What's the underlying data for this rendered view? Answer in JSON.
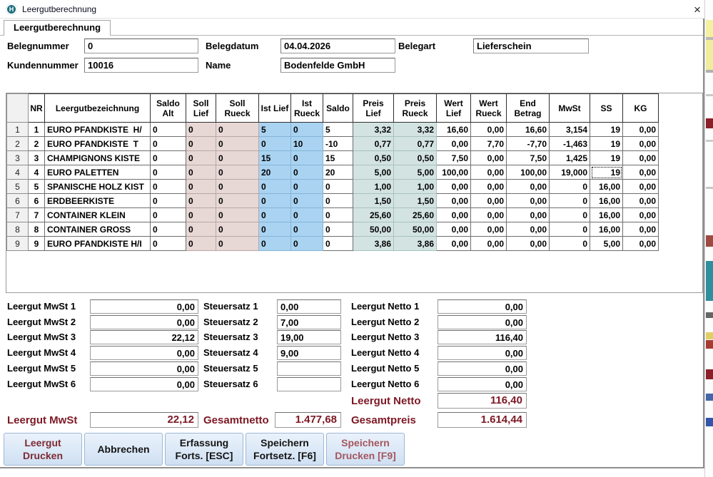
{
  "colors": {
    "icon_teal": "#1f6e7c",
    "column_soll_bg": "#e7d8d6",
    "column_ist_bg": "#a9d3f1",
    "column_preis_bg": "#d3e3e1",
    "totals_dark_red": "#7d1824",
    "button_bg": "#d8e6f6",
    "button_text_dark_red": "#7d2a33",
    "button_text_rose": "#a4565e"
  },
  "window": {
    "title": "Leergutberechnung",
    "icon_letter": "H",
    "close_glyph": "×"
  },
  "tab": {
    "label": "Leergutberechnung"
  },
  "form": {
    "belegnummer": {
      "label": "Belegnummer",
      "value": "0"
    },
    "belegdatum": {
      "label": "Belegdatum",
      "value": "04.04.2026"
    },
    "belegart": {
      "label": "Belegart",
      "value": "Lieferschein"
    },
    "kundennummer": {
      "label": "Kundennummer",
      "value": "10016"
    },
    "name": {
      "label": "Name",
      "value": "Bodenfelde GmbH"
    }
  },
  "table": {
    "header": {
      "nr": "NR",
      "name": "Leergutbezeichnung",
      "saldo_alt": "Saldo\nAlt",
      "soll_lief": "Soll\nLief",
      "soll_rueck": "Soll\nRueck",
      "ist_lief": "Ist Lief",
      "ist_rueck": "Ist\nRueck",
      "saldo": "Saldo",
      "preis_lief": "Preis\nLief",
      "preis_rueck": "Preis\nRueck",
      "wert_lief": "Wert\nLief",
      "wert_rueck": "Wert\nRueck",
      "end_betrag": "End\nBetrag",
      "mwst": "MwSt",
      "ss": "SS",
      "kg": "KG"
    },
    "rows": [
      {
        "idx": "1",
        "nr": "1",
        "name": "EURO PFANDKISTE  H/",
        "saldo_alt": "0",
        "soll_lief": "0",
        "soll_rueck": "0",
        "ist_lief": "5",
        "ist_rueck": "0",
        "saldo": "5",
        "preis_lief": "3,32",
        "preis_rueck": "3,32",
        "wert_lief": "16,60",
        "wert_rueck": "0,00",
        "end_betrag": "16,60",
        "mwst": "3,154",
        "ss": "19",
        "kg": "0,00"
      },
      {
        "idx": "2",
        "nr": "2",
        "name": "EURO PFANDKISTE  T",
        "saldo_alt": "0",
        "soll_lief": "0",
        "soll_rueck": "0",
        "ist_lief": "0",
        "ist_rueck": "10",
        "saldo": "-10",
        "preis_lief": "0,77",
        "preis_rueck": "0,77",
        "wert_lief": "0,00",
        "wert_rueck": "7,70",
        "end_betrag": "-7,70",
        "mwst": "-1,463",
        "ss": "19",
        "kg": "0,00"
      },
      {
        "idx": "3",
        "nr": "3",
        "name": "CHAMPIGNONS KISTE",
        "saldo_alt": "0",
        "soll_lief": "0",
        "soll_rueck": "0",
        "ist_lief": "15",
        "ist_rueck": "0",
        "saldo": "15",
        "preis_lief": "0,50",
        "preis_rueck": "0,50",
        "wert_lief": "7,50",
        "wert_rueck": "0,00",
        "end_betrag": "7,50",
        "mwst": "1,425",
        "ss": "19",
        "kg": "0,00"
      },
      {
        "idx": "4",
        "nr": "4",
        "name": "EURO PALETTEN",
        "saldo_alt": "0",
        "soll_lief": "0",
        "soll_rueck": "0",
        "ist_lief": "20",
        "ist_rueck": "0",
        "saldo": "20",
        "preis_lief": "5,00",
        "preis_rueck": "5,00",
        "wert_lief": "100,00",
        "wert_rueck": "0,00",
        "end_betrag": "100,00",
        "mwst": "19,000",
        "ss": "19",
        "kg": "0,00"
      },
      {
        "idx": "5",
        "nr": "5",
        "name": "SPANISCHE HOLZ KIST",
        "saldo_alt": "0",
        "soll_lief": "0",
        "soll_rueck": "0",
        "ist_lief": "0",
        "ist_rueck": "0",
        "saldo": "0",
        "preis_lief": "1,00",
        "preis_rueck": "1,00",
        "wert_lief": "0,00",
        "wert_rueck": "0,00",
        "end_betrag": "0,00",
        "mwst": "0",
        "ss": "16,00",
        "kg": "0,00"
      },
      {
        "idx": "6",
        "nr": "6",
        "name": "ERDBEERKISTE",
        "saldo_alt": "0",
        "soll_lief": "0",
        "soll_rueck": "0",
        "ist_lief": "0",
        "ist_rueck": "0",
        "saldo": "0",
        "preis_lief": "1,50",
        "preis_rueck": "1,50",
        "wert_lief": "0,00",
        "wert_rueck": "0,00",
        "end_betrag": "0,00",
        "mwst": "0",
        "ss": "16,00",
        "kg": "0,00"
      },
      {
        "idx": "7",
        "nr": "7",
        "name": "CONTAINER KLEIN",
        "saldo_alt": "0",
        "soll_lief": "0",
        "soll_rueck": "0",
        "ist_lief": "0",
        "ist_rueck": "0",
        "saldo": "0",
        "preis_lief": "25,60",
        "preis_rueck": "25,60",
        "wert_lief": "0,00",
        "wert_rueck": "0,00",
        "end_betrag": "0,00",
        "mwst": "0",
        "ss": "16,00",
        "kg": "0,00"
      },
      {
        "idx": "8",
        "nr": "8",
        "name": "CONTAINER GROSS",
        "saldo_alt": "0",
        "soll_lief": "0",
        "soll_rueck": "0",
        "ist_lief": "0",
        "ist_rueck": "0",
        "saldo": "0",
        "preis_lief": "50,00",
        "preis_rueck": "50,00",
        "wert_lief": "0,00",
        "wert_rueck": "0,00",
        "end_betrag": "0,00",
        "mwst": "0",
        "ss": "16,00",
        "kg": "0,00"
      },
      {
        "idx": "9",
        "nr": "9",
        "name": "EURO PFANDKISTE H/I",
        "saldo_alt": "0",
        "soll_lief": "0",
        "soll_rueck": "0",
        "ist_lief": "0",
        "ist_rueck": "0",
        "saldo": "0",
        "preis_lief": "3,86",
        "preis_rueck": "3,86",
        "wert_lief": "0,00",
        "wert_rueck": "0,00",
        "end_betrag": "0,00",
        "mwst": "0",
        "ss": "5,00",
        "kg": "0,00"
      }
    ],
    "focused_cell": {
      "row": "4",
      "column": "ss"
    }
  },
  "summary": {
    "rows": [
      {
        "mwst_label": "Leergut MwSt 1",
        "mwst_value": "0,00",
        "steuersatz_label": "Steuersatz 1",
        "steuersatz_value": "0,00",
        "netto_label": "Leergut Netto 1",
        "netto_value": "0,00"
      },
      {
        "mwst_label": "Leergut MwSt 2",
        "mwst_value": "0,00",
        "steuersatz_label": "Steuersatz 2",
        "steuersatz_value": "7,00",
        "netto_label": "Leergut Netto 2",
        "netto_value": "0,00"
      },
      {
        "mwst_label": "Leergut MwSt 3",
        "mwst_value": "22,12",
        "steuersatz_label": "Steuersatz 3",
        "steuersatz_value": "19,00",
        "netto_label": "Leergut Netto 3",
        "netto_value": "116,40"
      },
      {
        "mwst_label": "Leergut MwSt 4",
        "mwst_value": "0,00",
        "steuersatz_label": "Steuersatz 4",
        "steuersatz_value": "9,00",
        "netto_label": "Leergut Netto 4",
        "netto_value": "0,00"
      },
      {
        "mwst_label": "Leergut MwSt 5",
        "mwst_value": "0,00",
        "steuersatz_label": "Steuersatz 5",
        "steuersatz_value": "",
        "netto_label": "Leergut Netto 5",
        "netto_value": "0,00"
      },
      {
        "mwst_label": "Leergut MwSt 6",
        "mwst_value": "0,00",
        "steuersatz_label": "Steuersatz 6",
        "steuersatz_value": "",
        "netto_label": "Leergut Netto 6",
        "netto_value": "0,00"
      }
    ]
  },
  "totals": {
    "leergut_netto": {
      "label": "Leergut Netto",
      "value": "116,40"
    },
    "leergut_mwst": {
      "label": "Leergut MwSt",
      "value": "22,12"
    },
    "gesamtnetto": {
      "label": "Gesamtnetto",
      "value": "1.477,68"
    },
    "gesamtpreis": {
      "label": "Gesamtpreis",
      "value": "1.614,44"
    }
  },
  "buttons": [
    {
      "id": "leergut-drucken-button",
      "lines": [
        "Leergut",
        "Drucken"
      ],
      "color": "red"
    },
    {
      "id": "abbrechen-button",
      "lines": [
        "Abbrechen"
      ],
      "color": "black"
    },
    {
      "id": "erfassung-forts-button",
      "lines": [
        "Erfassung",
        "Forts. [ESC]"
      ],
      "color": "black"
    },
    {
      "id": "speichern-fortsetz-button",
      "lines": [
        "Speichern",
        "Fortsetz. [F6]"
      ],
      "color": "black"
    },
    {
      "id": "speichern-drucken-button",
      "lines": [
        "Speichern",
        "Drucken [F9]"
      ],
      "color": "rose"
    }
  ]
}
